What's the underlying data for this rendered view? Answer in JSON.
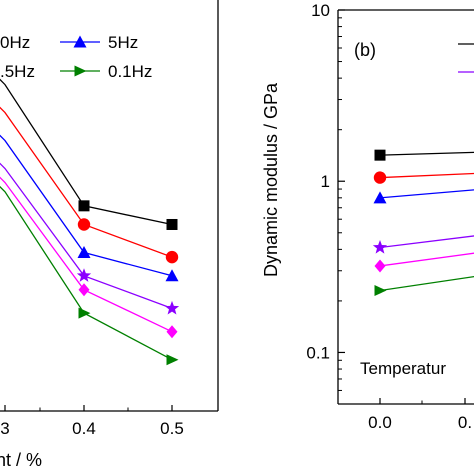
{
  "chart_data": [
    {
      "type": "line",
      "panel": "left",
      "xlabel": "nt / %",
      "x_ticks": [
        "3",
        "0.4",
        "0.5"
      ],
      "x": [
        0.3,
        0.4,
        0.5
      ],
      "legend_placement": "top",
      "series": [
        {
          "name": "0Hz",
          "marker": "square",
          "color": "#000000",
          "values": [
            0.77,
            0.64,
            0.62
          ]
        },
        {
          "name": ".5Hz",
          "marker": "circle",
          "color": "#ff0000",
          "values": [
            0.74,
            0.62,
            0.585
          ]
        },
        {
          "name": "5Hz",
          "marker": "triangle",
          "color": "#0000ff",
          "values": [
            0.71,
            0.59,
            0.565
          ]
        },
        {
          "name": "",
          "marker": "star",
          "color": "#8b00ff",
          "values": [
            0.68,
            0.565,
            0.53
          ]
        },
        {
          "name": "",
          "marker": "diamond",
          "color": "#ff00ff",
          "values": [
            0.665,
            0.55,
            0.505
          ]
        },
        {
          "name": "0.1Hz",
          "marker": "triangle-right",
          "color": "#008000",
          "values": [
            0.655,
            0.525,
            0.475
          ]
        }
      ]
    },
    {
      "type": "line",
      "panel": "right",
      "panel_label": "(b)",
      "ylabel": "Dynamic modulus / GPa",
      "yscale": "log",
      "ylim": [
        0.05,
        10
      ],
      "y_ticks": [
        "10",
        "1",
        "0.1"
      ],
      "x_ticks": [
        "0.0",
        "0."
      ],
      "x": [
        0.0
      ],
      "annotation": "Temperatur",
      "legend_placement": "top-right",
      "series": [
        {
          "name": "",
          "marker": "square",
          "color": "#000000",
          "values": [
            1.42
          ]
        },
        {
          "name": "",
          "marker": "circle",
          "color": "#ff0000",
          "values": [
            1.05
          ]
        },
        {
          "name": "",
          "marker": "triangle",
          "color": "#0000ff",
          "values": [
            0.8
          ]
        },
        {
          "name": "",
          "marker": "star",
          "color": "#8b00ff",
          "values": [
            0.41
          ]
        },
        {
          "name": "",
          "marker": "diamond",
          "color": "#ff00ff",
          "values": [
            0.32
          ]
        },
        {
          "name": "",
          "marker": "triangle-right",
          "color": "#008000",
          "values": [
            0.23
          ]
        }
      ]
    }
  ]
}
